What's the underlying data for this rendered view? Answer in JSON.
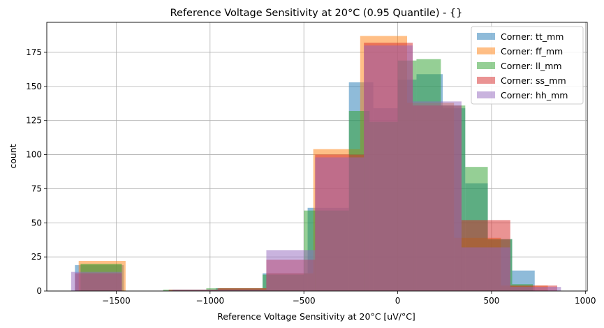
{
  "chart_data": {
    "type": "histogram",
    "title": "Reference Voltage Sensitivity at 20°C (0.95 Quantile) - {}",
    "xlabel": "Reference Voltage Sensitivity at 20°C [uV/°C]",
    "ylabel": "count",
    "xlim": [
      -1870,
      1010
    ],
    "ylim": [
      0,
      197
    ],
    "xticks": [
      -1500,
      -1000,
      -500,
      0,
      500,
      1000
    ],
    "xtick_labels": [
      "−1500",
      "−1000",
      "−500",
      "0",
      "500",
      "1000"
    ],
    "yticks": [
      0,
      25,
      50,
      75,
      100,
      125,
      150,
      175
    ],
    "grid": true,
    "legend": "top-right",
    "series": [
      {
        "name": "Corner: tt_mm",
        "color": "#1f77b4",
        "edges": [
          -1720,
          -1460,
          -1200,
          -970,
          -720,
          -480,
          -260,
          -130,
          0,
          100,
          240,
          360,
          480,
          610,
          730
        ],
        "counts": [
          19,
          0,
          1,
          2,
          13,
          61,
          153,
          134,
          155,
          159,
          134,
          79,
          38,
          15
        ]
      },
      {
        "name": "Corner: ff_mm",
        "color": "#ff7f0e",
        "edges": [
          -1700,
          -1450,
          -1200,
          -950,
          -700,
          -450,
          -200,
          50,
          300,
          550,
          800
        ],
        "counts": [
          22,
          0,
          1,
          2,
          13,
          104,
          187,
          138,
          39,
          4
        ]
      },
      {
        "name": "Corner: ll_mm",
        "color": "#2ca02c",
        "edges": [
          -1690,
          -1470,
          -1250,
          -1020,
          -720,
          -500,
          -260,
          -150,
          0,
          100,
          230,
          360,
          480,
          610,
          720
        ],
        "counts": [
          20,
          0,
          1,
          2,
          12,
          59,
          132,
          124,
          169,
          170,
          136,
          91,
          38,
          5
        ]
      },
      {
        "name": "Corner: ss_mm",
        "color": "#d62728",
        "edges": [
          -1720,
          -1470,
          -1220,
          -960,
          -700,
          -440,
          -180,
          80,
          340,
          600,
          850
        ],
        "counts": [
          13,
          0,
          1,
          2,
          23,
          100,
          182,
          136,
          52,
          4
        ]
      },
      {
        "name": "Corner: hh_mm",
        "color": "#9467bd",
        "edges": [
          -1740,
          -1470,
          -1200,
          -950,
          -700,
          -440,
          -180,
          80,
          340,
          600,
          870
        ],
        "counts": [
          14,
          0,
          1,
          1,
          30,
          98,
          180,
          139,
          32,
          3
        ]
      }
    ]
  }
}
